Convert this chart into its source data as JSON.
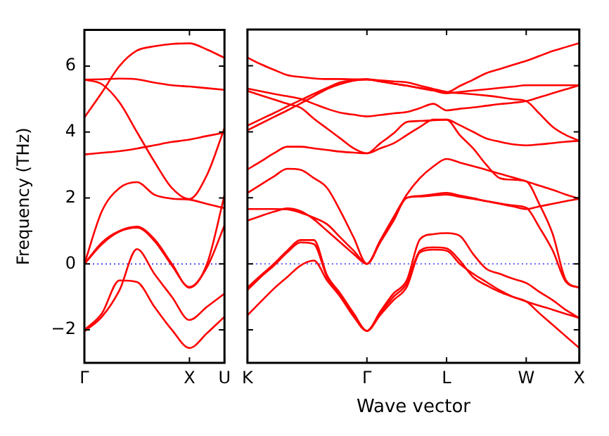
{
  "chart_data": [
    {
      "type": "line",
      "ylabel": "Frequency (THz)",
      "categories": [
        "Γ",
        null,
        null,
        null,
        null,
        null,
        "X",
        null,
        "U"
      ],
      "ylim": [
        -3,
        7.1
      ],
      "yticks": [
        -2,
        0,
        2,
        4,
        6
      ],
      "grid": false,
      "legend": false,
      "ref_lines": [
        {
          "axis": "y",
          "value": 0,
          "label": null,
          "color": "#3333ff",
          "line_style": "dotted"
        }
      ],
      "series": [
        {
          "color": "#ff0000",
          "values": [
            4.44,
            5.2,
            6.0,
            6.47,
            6.6,
            6.67,
            6.69,
            6.5,
            6.25
          ]
        },
        {
          "color": "#ff0000",
          "values": [
            5.59,
            5.6,
            5.62,
            5.6,
            5.5,
            5.42,
            5.38,
            5.33,
            5.28
          ]
        },
        {
          "color": "#ff0000",
          "values": [
            5.59,
            5.45,
            4.9,
            4.0,
            3.1,
            2.3,
            1.97,
            2.7,
            4.12
          ]
        },
        {
          "color": "#ff0000",
          "values": [
            3.32,
            3.37,
            3.42,
            3.5,
            3.6,
            3.7,
            3.77,
            3.88,
            3.98
          ]
        },
        {
          "color": "#ff0000",
          "values": [
            0,
            1.6,
            2.3,
            2.48,
            2.1,
            1.98,
            1.95,
            1.82,
            1.69
          ]
        },
        {
          "color": "#ff0000",
          "values": [
            0,
            0.65,
            1.0,
            1.13,
            0.75,
            0.0,
            -0.72,
            0.0,
            2.08
          ]
        },
        {
          "color": "#ff0000",
          "values": [
            0,
            0.6,
            0.98,
            1.1,
            0.7,
            -0.05,
            -0.7,
            -0.1,
            1.17
          ]
        },
        {
          "color": "#ff0000",
          "values": [
            -2.05,
            -1.6,
            -0.8,
            0.45,
            -0.3,
            -1.0,
            -1.7,
            -1.3,
            -0.9
          ]
        },
        {
          "color": "#ff0000",
          "values": [
            -2.0,
            -1.5,
            -0.5,
            -0.55,
            -1.3,
            -2.0,
            -2.55,
            -2.1,
            -1.6
          ]
        }
      ]
    },
    {
      "type": "line",
      "xlabel": "Wave vector",
      "categories": [
        "K",
        null,
        null,
        null,
        null,
        null,
        null,
        null,
        null,
        "Γ",
        null,
        null,
        null,
        null,
        null,
        "L",
        null,
        null,
        null,
        null,
        null,
        "W",
        null,
        null,
        null,
        "X"
      ],
      "ylim": [
        -3,
        7.1
      ],
      "yticks": [
        -2,
        0,
        2,
        4,
        6
      ],
      "tick_labels": "x",
      "grid": false,
      "legend": false,
      "ref_lines": [
        {
          "axis": "y",
          "value": 0,
          "label": null,
          "color": "#3333ff",
          "line_style": "dotted"
        }
      ],
      "series": [
        {
          "color": "#ff0000",
          "values": [
            6.25,
            6.05,
            5.88,
            5.72,
            5.66,
            5.62,
            5.6,
            5.6,
            5.59,
            5.59,
            5.53,
            5.46,
            5.4,
            5.33,
            5.27,
            5.2,
            5.39,
            5.58,
            5.78,
            5.9,
            6.03,
            6.15,
            6.3,
            6.45,
            6.57,
            6.69
          ]
        },
        {
          "color": "#ff0000",
          "values": [
            5.31,
            5.23,
            5.15,
            5.08,
            5.0,
            4.85,
            4.7,
            4.58,
            4.52,
            4.47,
            4.51,
            4.56,
            4.6,
            4.72,
            4.85,
            4.65,
            4.7,
            4.74,
            4.79,
            4.84,
            4.88,
            4.93,
            5.05,
            5.17,
            5.29,
            5.41
          ]
        },
        {
          "color": "#ff0000",
          "values": [
            5.24,
            5.11,
            4.98,
            4.85,
            4.73,
            4.4,
            4.1,
            3.8,
            3.5,
            3.35,
            3.5,
            3.65,
            3.9,
            4.15,
            4.37,
            4.37,
            4.2,
            4.0,
            3.8,
            3.7,
            3.62,
            3.59,
            3.62,
            3.66,
            3.7,
            3.73
          ]
        },
        {
          "color": "#ff0000",
          "values": [
            4.19,
            4.38,
            4.57,
            4.77,
            4.96,
            5.15,
            5.33,
            5.5,
            5.56,
            5.59,
            5.53,
            5.46,
            5.4,
            5.32,
            5.25,
            5.17,
            5.21,
            5.25,
            5.29,
            5.33,
            5.37,
            5.41,
            5.41,
            5.41,
            5.41,
            5.41
          ]
        },
        {
          "color": "#ff0000",
          "values": [
            4.05,
            4.25,
            4.45,
            4.65,
            4.86,
            5.08,
            5.3,
            5.45,
            5.55,
            5.59,
            5.56,
            5.53,
            5.5,
            5.4,
            5.3,
            5.21,
            5.17,
            5.14,
            5.1,
            5.05,
            4.99,
            4.93,
            4.55,
            4.15,
            3.9,
            3.73
          ]
        },
        {
          "color": "#ff0000",
          "values": [
            2.86,
            3.1,
            3.35,
            3.55,
            3.55,
            3.5,
            3.45,
            3.4,
            3.37,
            3.35,
            3.65,
            3.95,
            4.3,
            4.33,
            4.35,
            4.37,
            3.9,
            3.5,
            3.0,
            2.6,
            2.55,
            2.5,
            1.8,
            0.9,
            -0.5,
            -0.72
          ]
        },
        {
          "color": "#ff0000",
          "values": [
            2.15,
            2.4,
            2.65,
            2.88,
            2.85,
            2.6,
            2.3,
            1.6,
            0.8,
            0,
            0.7,
            1.4,
            2.0,
            2.06,
            2.11,
            2.15,
            2.07,
            1.99,
            1.9,
            1.82,
            1.74,
            1.66,
            1.74,
            1.82,
            1.9,
            1.97
          ]
        },
        {
          "color": "#ff0000",
          "values": [
            1.66,
            1.66,
            1.66,
            1.65,
            1.55,
            1.4,
            1.2,
            0.8,
            0.4,
            0,
            0.7,
            1.4,
            2.1,
            2.6,
            2.95,
            3.18,
            3.07,
            2.96,
            2.85,
            2.73,
            2.62,
            2.5,
            2.37,
            2.24,
            2.1,
            1.97
          ]
        },
        {
          "color": "#ff0000",
          "values": [
            1.31,
            1.45,
            1.58,
            1.68,
            1.6,
            1.35,
            1.0,
            0.65,
            0.3,
            0,
            0.65,
            1.3,
            2.0,
            2.04,
            2.07,
            2.1,
            2.03,
            1.97,
            1.9,
            1.83,
            1.77,
            1.7,
            1.1,
            0.4,
            -0.55,
            -0.72
          ]
        },
        {
          "color": "#ff0000",
          "values": [
            -0.72,
            -0.35,
            0.0,
            0.4,
            0.72,
            0.72,
            -0.35,
            -0.9,
            -1.5,
            -2.03,
            -1.5,
            -1.0,
            -0.6,
            0.4,
            0.5,
            0.47,
            0.1,
            -0.4,
            -0.65,
            -0.85,
            -1.0,
            -1.14,
            -1.27,
            -1.39,
            -1.52,
            -1.64
          ]
        },
        {
          "color": "#ff0000",
          "values": [
            -0.79,
            -0.4,
            -0.05,
            0.35,
            0.65,
            0.6,
            -0.4,
            -0.95,
            -1.55,
            -2.03,
            -1.45,
            -0.9,
            -0.5,
            0.75,
            0.9,
            0.93,
            0.85,
            0.3,
            -0.15,
            -0.3,
            -0.45,
            -0.58,
            -0.85,
            -1.1,
            -1.4,
            -1.64
          ]
        },
        {
          "color": "#ff0000",
          "values": [
            -1.56,
            -1.15,
            -0.75,
            -0.4,
            -0.05,
            0.1,
            -0.5,
            -1.0,
            -1.6,
            -2.03,
            -1.55,
            -1.1,
            -0.7,
            0.35,
            0.43,
            0.4,
            0.0,
            -0.3,
            -0.55,
            -0.8,
            -1.0,
            -1.14,
            -1.5,
            -1.85,
            -2.2,
            -2.55
          ]
        }
      ]
    }
  ]
}
